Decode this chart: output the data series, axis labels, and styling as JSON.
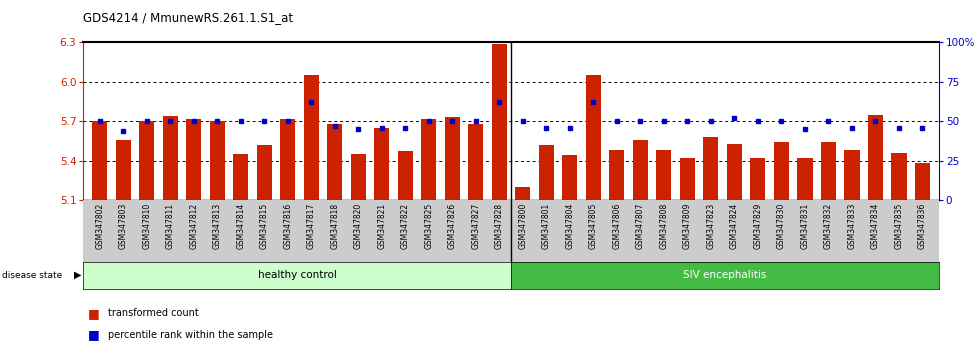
{
  "title": "GDS4214 / MmunewRS.261.1.S1_at",
  "samples": [
    "GSM347802",
    "GSM347803",
    "GSM347810",
    "GSM347811",
    "GSM347812",
    "GSM347813",
    "GSM347814",
    "GSM347815",
    "GSM347816",
    "GSM347817",
    "GSM347818",
    "GSM347820",
    "GSM347821",
    "GSM347822",
    "GSM347825",
    "GSM347826",
    "GSM347827",
    "GSM347828",
    "GSM347800",
    "GSM347801",
    "GSM347804",
    "GSM347805",
    "GSM347806",
    "GSM347807",
    "GSM347808",
    "GSM347809",
    "GSM347823",
    "GSM347824",
    "GSM347829",
    "GSM347830",
    "GSM347831",
    "GSM347832",
    "GSM347833",
    "GSM347834",
    "GSM347835",
    "GSM347836"
  ],
  "bar_values": [
    5.7,
    5.56,
    5.7,
    5.74,
    5.72,
    5.7,
    5.45,
    5.52,
    5.72,
    6.05,
    5.68,
    5.45,
    5.65,
    5.47,
    5.72,
    5.73,
    5.68,
    6.29,
    5.2,
    5.52,
    5.44,
    6.05,
    5.48,
    5.56,
    5.48,
    5.42,
    5.58,
    5.53,
    5.42,
    5.54,
    5.42,
    5.54,
    5.48,
    5.75,
    5.46,
    5.38
  ],
  "percentile_values": [
    50,
    44,
    50,
    50,
    50,
    50,
    50,
    50,
    50,
    62,
    47,
    45,
    46,
    46,
    50,
    50,
    50,
    62,
    50,
    46,
    46,
    62,
    50,
    50,
    50,
    50,
    50,
    52,
    50,
    50,
    45,
    50,
    46,
    50,
    46,
    46
  ],
  "healthy_count": 18,
  "ymin": 5.1,
  "ymax": 6.3,
  "yticks": [
    5.1,
    5.4,
    5.7,
    6.0,
    6.3
  ],
  "right_yticks": [
    0,
    25,
    50,
    75,
    100
  ],
  "bar_color": "#CC2200",
  "percentile_color": "#0000CC",
  "healthy_bg": "#CCFFCC",
  "siv_bg": "#44BB44",
  "xtick_bg": "#CCCCCC",
  "bar_width": 0.65
}
